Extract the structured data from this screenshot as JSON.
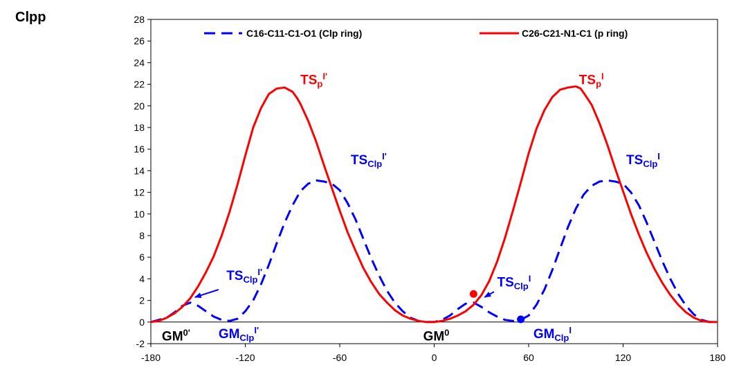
{
  "page_label": "Clpp",
  "chart_data": {
    "type": "line",
    "title": "",
    "xlabel": "",
    "ylabel": "",
    "xlim": [
      -180,
      180
    ],
    "ylim": [
      -2,
      28
    ],
    "x_ticks": [
      -180,
      -120,
      -60,
      0,
      60,
      120,
      180
    ],
    "y_ticks": [
      -2,
      0,
      2,
      4,
      6,
      8,
      10,
      12,
      14,
      16,
      18,
      20,
      22,
      24,
      26,
      28
    ],
    "grid": false,
    "legend_position": "top",
    "series": [
      {
        "name": "C16-C11-C1-O1 (Clp ring)",
        "color": "#0000ff",
        "style": "dashed",
        "x": [
          -180,
          -170,
          -165,
          -160,
          -155,
          -150,
          -145,
          -140,
          -135,
          -130,
          -125,
          -120,
          -115,
          -110,
          -105,
          -100,
          -95,
          -90,
          -85,
          -80,
          -75,
          -70,
          -65,
          -60,
          -55,
          -50,
          -45,
          -40,
          -35,
          -30,
          -25,
          -20,
          -15,
          -10,
          -5,
          0,
          5,
          10,
          15,
          20,
          25,
          30,
          35,
          40,
          45,
          50,
          55,
          60,
          65,
          70,
          75,
          80,
          85,
          90,
          95,
          100,
          105,
          110,
          115,
          120,
          125,
          130,
          135,
          140,
          145,
          150,
          155,
          160,
          165,
          170,
          175,
          180
        ],
        "y": [
          0,
          0.4,
          0.9,
          1.5,
          1.8,
          1.5,
          1.0,
          0.5,
          0.2,
          0.1,
          0.3,
          1.0,
          2.0,
          3.5,
          5.3,
          7.3,
          9.2,
          10.8,
          12.1,
          12.8,
          13.1,
          13.0,
          12.8,
          12.2,
          11.0,
          9.5,
          7.7,
          5.9,
          4.3,
          2.9,
          1.8,
          1.0,
          0.4,
          0.1,
          0,
          0,
          0.2,
          0.6,
          1.2,
          1.7,
          1.8,
          1.4,
          0.9,
          0.5,
          0.2,
          0.1,
          0.2,
          0.6,
          1.6,
          3.0,
          4.8,
          6.8,
          8.8,
          10.5,
          11.8,
          12.6,
          13.0,
          13.1,
          13.0,
          12.8,
          12.0,
          10.8,
          9.2,
          7.4,
          5.6,
          4.0,
          2.6,
          1.5,
          0.7,
          0.2,
          0,
          0
        ]
      },
      {
        "name": "C26-C21-N1-C1 (p ring)",
        "color": "#ff0000",
        "style": "solid",
        "x": [
          -180,
          -175,
          -170,
          -165,
          -160,
          -155,
          -150,
          -145,
          -140,
          -135,
          -130,
          -125,
          -120,
          -115,
          -110,
          -105,
          -100,
          -95,
          -90,
          -87,
          -85,
          -80,
          -75,
          -70,
          -65,
          -60,
          -55,
          -50,
          -45,
          -40,
          -35,
          -30,
          -25,
          -20,
          -15,
          -10,
          -5,
          0,
          5,
          10,
          15,
          20,
          25,
          30,
          35,
          40,
          45,
          50,
          55,
          60,
          65,
          70,
          75,
          80,
          85,
          90,
          93,
          95,
          100,
          105,
          110,
          115,
          120,
          125,
          130,
          135,
          140,
          145,
          150,
          155,
          160,
          165,
          170,
          175,
          180
        ],
        "y": [
          0,
          0.1,
          0.4,
          0.8,
          1.4,
          2.2,
          3.3,
          4.6,
          6.1,
          8.0,
          10.2,
          12.7,
          15.4,
          18.0,
          19.8,
          21.1,
          21.6,
          21.7,
          21.3,
          20.7,
          20.2,
          18.6,
          16.7,
          14.5,
          12.4,
          10.3,
          8.3,
          6.6,
          5.0,
          3.7,
          2.6,
          1.8,
          1.1,
          0.6,
          0.3,
          0.1,
          0,
          0,
          0.1,
          0.3,
          0.6,
          1.0,
          1.6,
          2.5,
          3.8,
          5.6,
          7.8,
          10.3,
          12.9,
          15.6,
          17.9,
          19.6,
          20.8,
          21.5,
          21.7,
          21.8,
          21.6,
          21.2,
          20.1,
          18.4,
          16.4,
          14.2,
          12.1,
          10.0,
          8.1,
          6.4,
          4.9,
          3.6,
          2.5,
          1.6,
          0.9,
          0.4,
          0.1,
          0,
          0
        ]
      }
    ],
    "markers": [
      {
        "x": 25,
        "y": 2.6,
        "color": "#ff0000"
      },
      {
        "x": 55,
        "y": 0.25,
        "color": "#0000ff"
      }
    ],
    "annotations": [
      {
        "parts": [
          {
            "t": "TS",
            "s": "n"
          },
          {
            "t": "p",
            "s": "sub"
          },
          {
            "t": "I'",
            "s": "sup"
          }
        ],
        "x": -85,
        "y": 22.0,
        "color": "#ff0000"
      },
      {
        "parts": [
          {
            "t": "TS",
            "s": "n"
          },
          {
            "t": "p",
            "s": "sub"
          },
          {
            "t": "I",
            "s": "sup"
          }
        ],
        "x": 92,
        "y": 22.0,
        "color": "#ff0000"
      },
      {
        "parts": [
          {
            "t": "TS",
            "s": "n"
          },
          {
            "t": "Clp",
            "s": "sub"
          },
          {
            "t": "I'",
            "s": "sup"
          }
        ],
        "x": -53,
        "y": 14.6,
        "color": "#0000ff"
      },
      {
        "parts": [
          {
            "t": "TS",
            "s": "n"
          },
          {
            "t": "Clp",
            "s": "sub"
          },
          {
            "t": "I",
            "s": "sup"
          }
        ],
        "x": 122,
        "y": 14.6,
        "color": "#0000ff"
      },
      {
        "parts": [
          {
            "t": "TS",
            "s": "n"
          },
          {
            "t": "Clp",
            "s": "sub"
          },
          {
            "t": "I'",
            "s": "sup"
          }
        ],
        "x": -132,
        "y": 3.9,
        "color": "#0000ff"
      },
      {
        "parts": [
          {
            "t": "TS",
            "s": "n"
          },
          {
            "t": "Clp",
            "s": "sub"
          },
          {
            "t": "I",
            "s": "sup"
          }
        ],
        "x": 40,
        "y": 3.3,
        "color": "#0000ff"
      },
      {
        "parts": [
          {
            "t": "GM",
            "s": "n"
          },
          {
            "t": "Clp",
            "s": "sub"
          },
          {
            "t": "I'",
            "s": "sup"
          }
        ],
        "x": -137,
        "y": -1.5,
        "color": "#0000ff"
      },
      {
        "parts": [
          {
            "t": "GM",
            "s": "n"
          },
          {
            "t": "Clp",
            "s": "sub"
          },
          {
            "t": "I",
            "s": "sup"
          }
        ],
        "x": 63,
        "y": -1.5,
        "color": "#0000ff"
      },
      {
        "parts": [
          {
            "t": "GM",
            "s": "n"
          },
          {
            "t": "0'",
            "s": "sup"
          }
        ],
        "x": -173,
        "y": -1.7,
        "color": "#000000"
      },
      {
        "parts": [
          {
            "t": "GM",
            "s": "n"
          },
          {
            "t": "0",
            "s": "sup"
          }
        ],
        "x": -7,
        "y": -1.7,
        "color": "#000000"
      }
    ],
    "arrows": [
      {
        "from": [
          -137,
          3.0
        ],
        "to": [
          -152,
          2.3
        ],
        "color": "#0000ff"
      },
      {
        "from": [
          38,
          2.8
        ],
        "to": [
          32,
          2.3
        ],
        "color": "#0000ff"
      }
    ]
  }
}
